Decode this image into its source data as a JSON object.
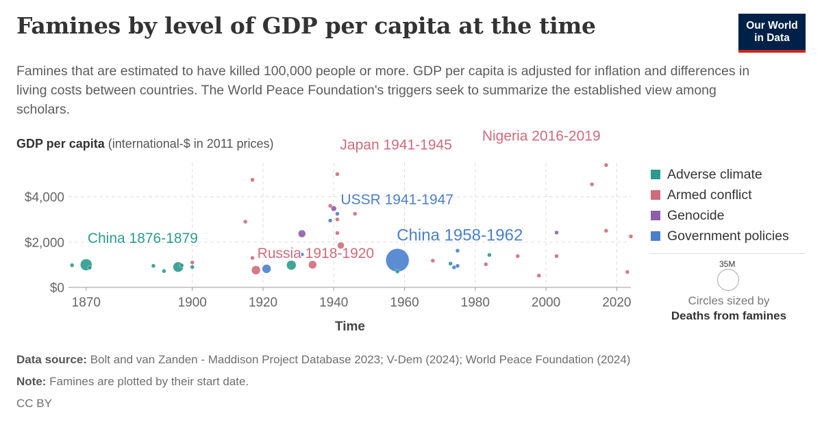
{
  "header": {
    "title": "Famines by level of GDP per capita at the time",
    "subtitle": "Famines that are estimated to have killed 100,000 people or more. GDP per capita is adjusted for inflation and differences in living costs between countries. The World Peace Foundation's triggers seek to summarize the established view among scholars.",
    "logo_line1": "Our World",
    "logo_line2": "in Data"
  },
  "colors": {
    "adverse_climate": "#2c9a8d",
    "armed_conflict": "#cf6b7c",
    "genocide": "#8e5ea8",
    "government_policies": "#4a7fcc"
  },
  "chart_data": {
    "type": "scatter",
    "y_axis_title_bold": "GDP per capita",
    "y_axis_title_rest": " (international-$ in 2011 prices)",
    "xlabel": "Time",
    "xlim": [
      1865,
      2024
    ],
    "ylim": [
      0,
      5500
    ],
    "x_ticks": [
      1870,
      1900,
      1920,
      1940,
      1960,
      1980,
      2000,
      2020
    ],
    "y_ticks": [
      {
        "value": 0,
        "label": "$0"
      },
      {
        "value": 2000,
        "label": "$2,000"
      },
      {
        "value": 4000,
        "label": "$4,000"
      }
    ],
    "grid": true,
    "legend_position": "right",
    "series": [
      {
        "name": "Adverse climate",
        "color": "#2c9a8d"
      },
      {
        "name": "Armed conflict",
        "color": "#cf6b7c"
      },
      {
        "name": "Genocide",
        "color": "#8e5ea8"
      },
      {
        "name": "Government policies",
        "color": "#4a7fcc"
      }
    ],
    "points": [
      {
        "x": 1866,
        "y": 980,
        "s": 0
      },
      {
        "x": 1870,
        "y": 1000,
        "s": 0,
        "r": 8.5
      },
      {
        "x": 1871,
        "y": 870,
        "s": 0
      },
      {
        "x": 1889,
        "y": 950,
        "s": 0
      },
      {
        "x": 1892,
        "y": 720,
        "s": 0
      },
      {
        "x": 1896,
        "y": 900,
        "s": 0,
        "r": 7.5
      },
      {
        "x": 1897,
        "y": 970,
        "s": 0
      },
      {
        "x": 1900,
        "y": 1100,
        "s": 1
      },
      {
        "x": 1900,
        "y": 900,
        "s": 0
      },
      {
        "x": 1915,
        "y": 2900,
        "s": 1
      },
      {
        "x": 1917,
        "y": 4750,
        "s": 1
      },
      {
        "x": 1917,
        "y": 1300,
        "s": 1
      },
      {
        "x": 1918,
        "y": 760,
        "s": 1,
        "r": 6.5
      },
      {
        "x": 1921,
        "y": 820,
        "s": 3,
        "r": 6.5
      },
      {
        "x": 1928,
        "y": 980,
        "s": 0,
        "r": 7
      },
      {
        "x": 1931,
        "y": 2370,
        "s": 2,
        "r": 5.5
      },
      {
        "x": 1931,
        "y": 1450,
        "s": 3
      },
      {
        "x": 1934,
        "y": 1000,
        "s": 1,
        "r": 6
      },
      {
        "x": 1939,
        "y": 3600,
        "s": 1
      },
      {
        "x": 1939,
        "y": 2950,
        "s": 3
      },
      {
        "x": 1940,
        "y": 3480,
        "s": 2,
        "r": 4
      },
      {
        "x": 1941,
        "y": 5000,
        "s": 1
      },
      {
        "x": 1941,
        "y": 3250,
        "s": 3
      },
      {
        "x": 1941,
        "y": 3000,
        "s": 1
      },
      {
        "x": 1941,
        "y": 2400,
        "s": 1
      },
      {
        "x": 1942,
        "y": 1850,
        "s": 1,
        "r": 5
      },
      {
        "x": 1946,
        "y": 3250,
        "s": 1
      },
      {
        "x": 1958,
        "y": 1200,
        "s": 3,
        "r": 17
      },
      {
        "x": 1958,
        "y": 700,
        "s": 0
      },
      {
        "x": 1968,
        "y": 1180,
        "s": 1
      },
      {
        "x": 1973,
        "y": 1050,
        "s": 0
      },
      {
        "x": 1974,
        "y": 880,
        "s": 3
      },
      {
        "x": 1975,
        "y": 1620,
        "s": 3
      },
      {
        "x": 1975,
        "y": 950,
        "s": 3
      },
      {
        "x": 1983,
        "y": 1020,
        "s": 1
      },
      {
        "x": 1984,
        "y": 1430,
        "s": 0
      },
      {
        "x": 1992,
        "y": 1380,
        "s": 1
      },
      {
        "x": 1998,
        "y": 520,
        "s": 1
      },
      {
        "x": 2003,
        "y": 2420,
        "s": 2
      },
      {
        "x": 2003,
        "y": 1380,
        "s": 1
      },
      {
        "x": 2013,
        "y": 4550,
        "s": 1
      },
      {
        "x": 2017,
        "y": 5400,
        "s": 1
      },
      {
        "x": 2017,
        "y": 2500,
        "s": 1
      },
      {
        "x": 2023,
        "y": 680,
        "s": 1
      },
      {
        "x": 2024,
        "y": 2250,
        "s": 1
      }
    ],
    "annotations": [
      {
        "text": "China 1876-1879",
        "x": 1870,
        "y": 1000,
        "s": 0,
        "size": 21
      },
      {
        "text": "Japan 1941-1945",
        "x": 1941,
        "y": 5000,
        "s": 1,
        "size": 21
      },
      {
        "text": "Nigeria 2016-2019",
        "x": 2017,
        "y": 5400,
        "s": 1,
        "size": 21
      },
      {
        "text": "USSR 1941-1947",
        "x": 1941,
        "y": 3250,
        "s": 3,
        "size": 21
      },
      {
        "text": "China 1958-1962",
        "x": 1958,
        "y": 1200,
        "s": 3,
        "size": 24
      },
      {
        "text": "Russia 1918-1920",
        "x": 1918,
        "y": 760,
        "s": 1,
        "size": 21
      }
    ]
  },
  "size_legend": {
    "value_label": "35M",
    "caption_line1": "Circles sized by",
    "caption_bold": "Deaths from famines"
  },
  "footer": {
    "source_label": "Data source:",
    "source_text": " Bolt and van Zanden - Maddison Project Database 2023; V-Dem (2024); World Peace Foundation (2024)",
    "note_label": "Note:",
    "note_text": " Famines are plotted by their start date.",
    "license": "CC BY"
  }
}
